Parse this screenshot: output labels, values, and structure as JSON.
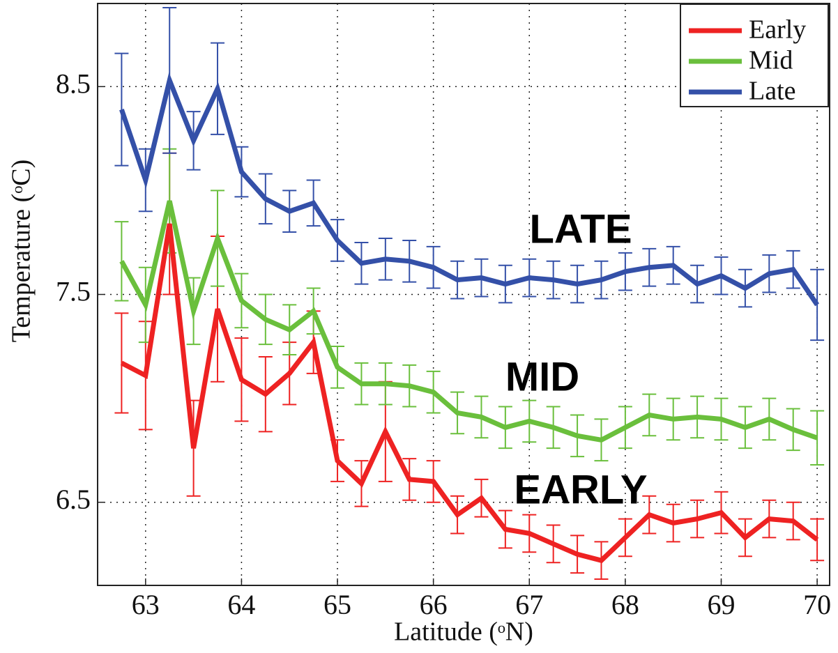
{
  "chart_data": {
    "type": "line",
    "x_label": "Latitude (ᵒN)",
    "y_label": "Temperature (ᵒC)",
    "x": [
      62.75,
      63,
      63.25,
      63.5,
      63.75,
      64,
      64.25,
      64.5,
      64.75,
      65,
      65.25,
      65.5,
      65.75,
      66,
      66.25,
      66.5,
      66.75,
      67,
      67.25,
      67.5,
      67.75,
      68,
      68.25,
      68.5,
      68.75,
      69,
      69.25,
      69.5,
      69.75,
      70
    ],
    "series": [
      {
        "name": "Early",
        "color": "#ee2222",
        "values": [
          7.17,
          7.11,
          7.84,
          6.76,
          7.43,
          7.09,
          7.02,
          7.12,
          7.27,
          6.7,
          6.59,
          6.84,
          6.61,
          6.6,
          6.44,
          6.52,
          6.37,
          6.35,
          6.3,
          6.25,
          6.22,
          6.33,
          6.44,
          6.4,
          6.42,
          6.45,
          6.33,
          6.42,
          6.41,
          6.32
        ],
        "errors": [
          0.24,
          0.26,
          0.34,
          0.23,
          0.35,
          0.2,
          0.18,
          0.15,
          0.15,
          0.1,
          0.11,
          0.24,
          0.1,
          0.1,
          0.09,
          0.09,
          0.09,
          0.09,
          0.09,
          0.09,
          0.09,
          0.09,
          0.09,
          0.09,
          0.09,
          0.1,
          0.09,
          0.09,
          0.09,
          0.1
        ]
      },
      {
        "name": "Mid",
        "color": "#6abf3c",
        "values": [
          7.66,
          7.45,
          7.95,
          7.42,
          7.77,
          7.47,
          7.38,
          7.33,
          7.42,
          7.15,
          7.07,
          7.07,
          7.06,
          7.03,
          6.93,
          6.91,
          6.86,
          6.89,
          6.86,
          6.82,
          6.8,
          6.86,
          6.92,
          6.9,
          6.91,
          6.9,
          6.86,
          6.9,
          6.85,
          6.81
        ],
        "errors": [
          0.19,
          0.18,
          0.25,
          0.16,
          0.23,
          0.13,
          0.12,
          0.12,
          0.11,
          0.1,
          0.1,
          0.1,
          0.1,
          0.1,
          0.1,
          0.1,
          0.1,
          0.1,
          0.1,
          0.1,
          0.1,
          0.1,
          0.1,
          0.1,
          0.1,
          0.1,
          0.1,
          0.1,
          0.1,
          0.13
        ]
      },
      {
        "name": "Late",
        "color": "#3450a8",
        "values": [
          8.39,
          8.05,
          8.53,
          8.24,
          8.49,
          8.09,
          7.96,
          7.9,
          7.94,
          7.76,
          7.65,
          7.67,
          7.66,
          7.63,
          7.57,
          7.58,
          7.55,
          7.58,
          7.57,
          7.55,
          7.57,
          7.61,
          7.63,
          7.64,
          7.55,
          7.59,
          7.53,
          7.6,
          7.62,
          7.45
        ],
        "errors": [
          0.27,
          0.15,
          0.35,
          0.14,
          0.22,
          0.12,
          0.12,
          0.1,
          0.11,
          0.1,
          0.1,
          0.1,
          0.1,
          0.1,
          0.09,
          0.09,
          0.09,
          0.09,
          0.09,
          0.09,
          0.09,
          0.09,
          0.09,
          0.09,
          0.09,
          0.09,
          0.09,
          0.09,
          0.09,
          0.17
        ]
      }
    ],
    "annotations": [
      "LATE",
      "MID",
      "EARLY"
    ],
    "xlim": [
      62.5,
      70.13
    ],
    "ylim": [
      6.1,
      8.9
    ],
    "xticks": [
      63,
      64,
      65,
      66,
      67,
      68,
      69,
      70
    ],
    "yticks": [
      6.5,
      7.5,
      8.5
    ],
    "grid": true,
    "legend": "upper-right"
  }
}
